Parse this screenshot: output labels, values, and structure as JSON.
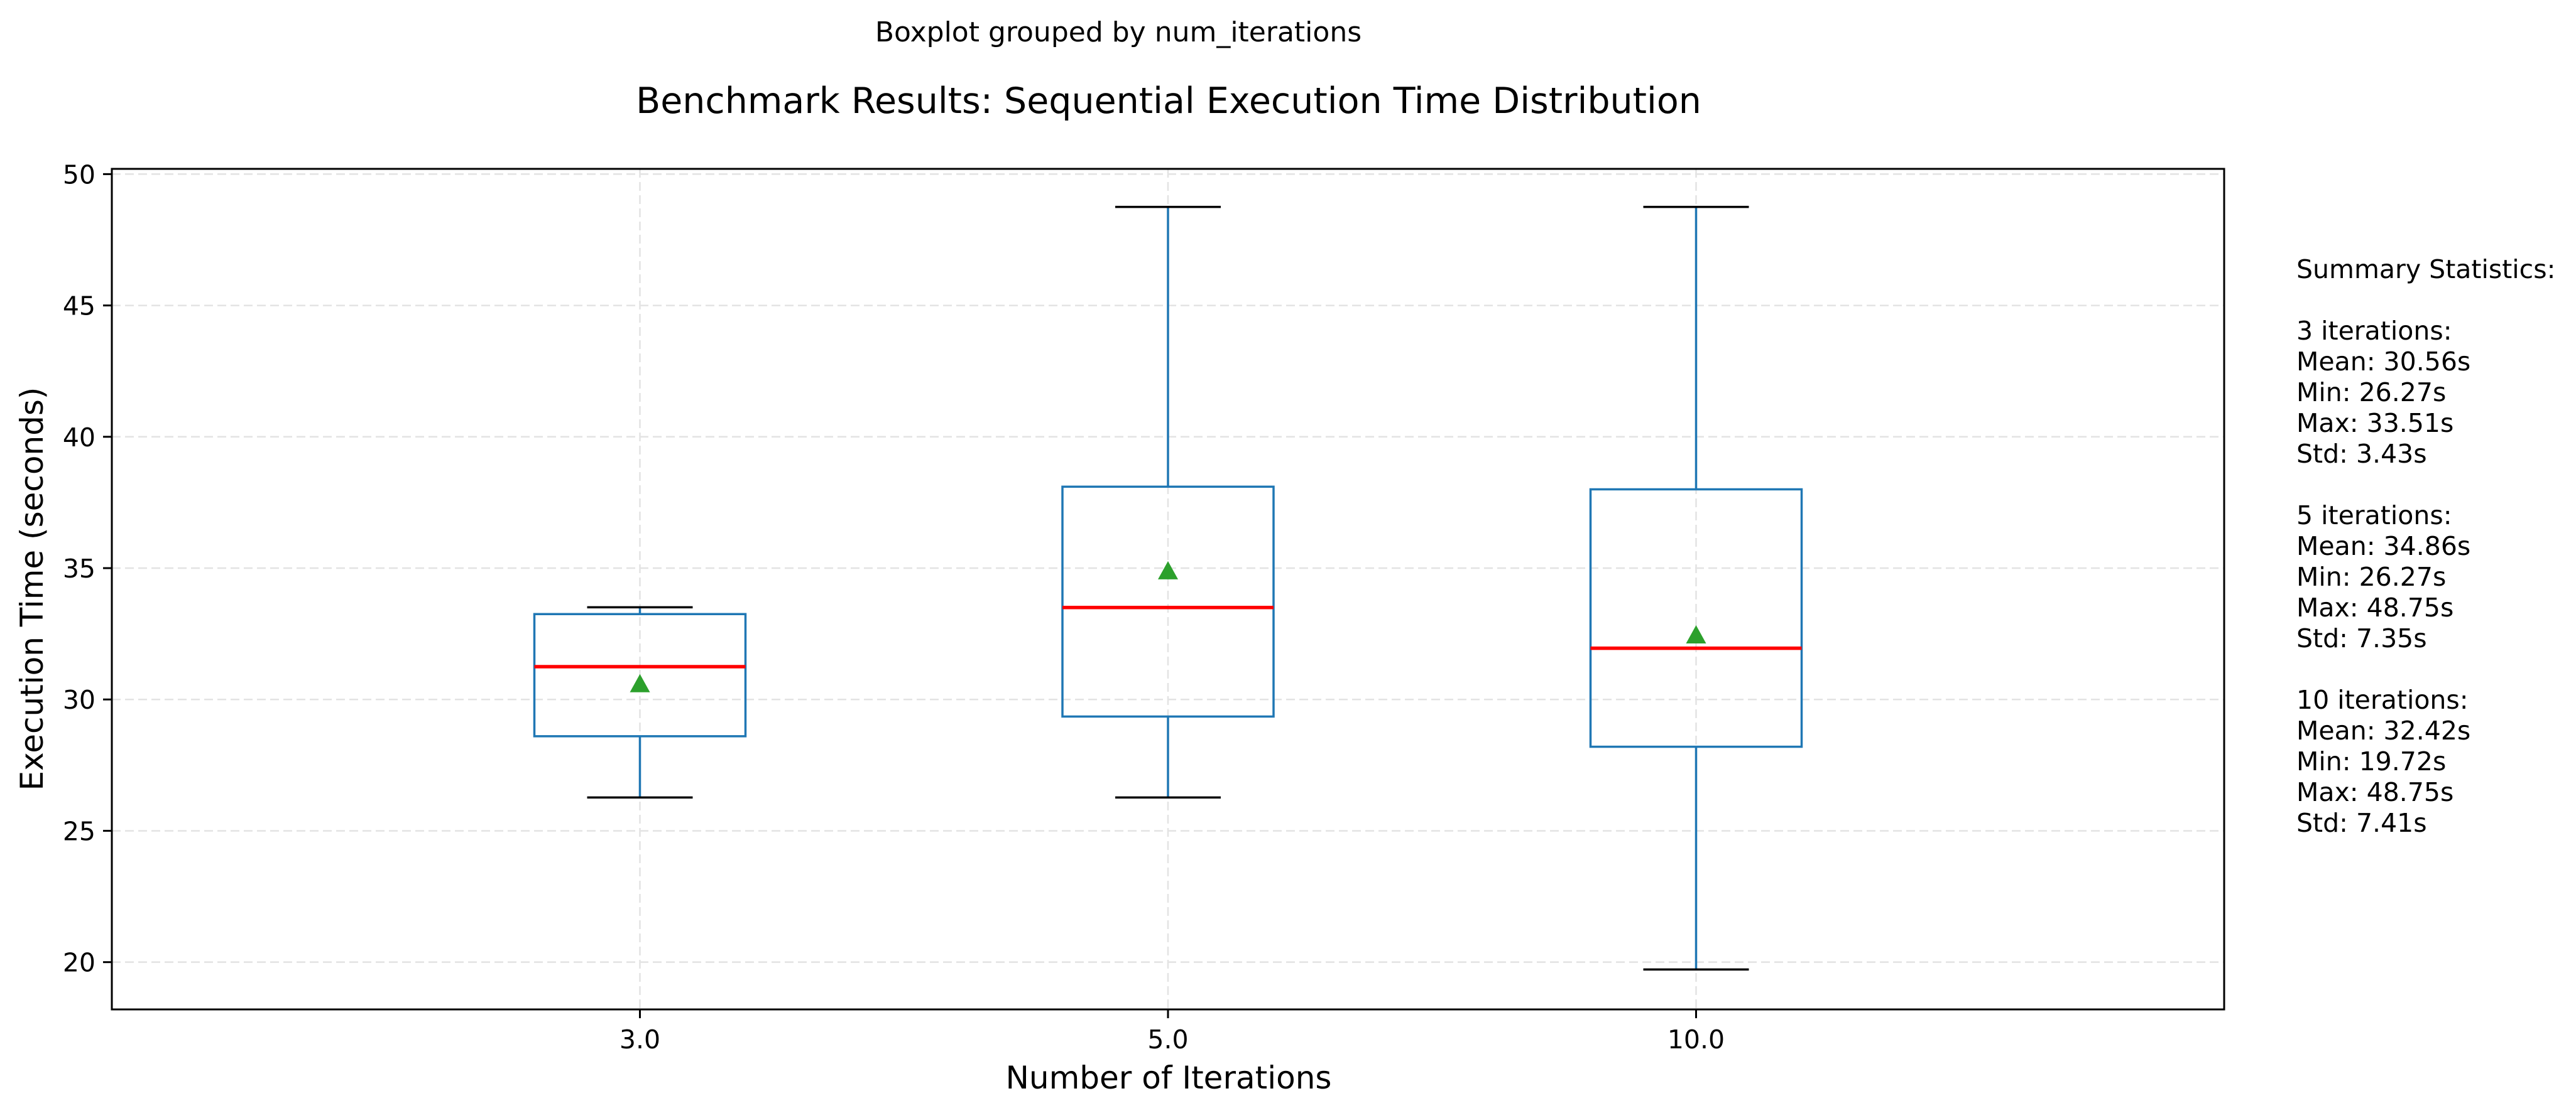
{
  "chart_data": {
    "type": "boxplot",
    "suptitle": "Boxplot grouped by num_iterations",
    "title": "Benchmark Results: Sequential Execution Time Distribution",
    "xlabel": "Number of Iterations",
    "ylabel": "Execution Time (seconds)",
    "ylim": [
      18.2,
      50.2
    ],
    "yticks": [
      20,
      25,
      30,
      35,
      40,
      45,
      50
    ],
    "grid": true,
    "categories": [
      "3.0",
      "5.0",
      "10.0"
    ],
    "boxes": [
      {
        "category": "3.0",
        "whisker_low": 26.27,
        "q1": 28.6,
        "median": 31.25,
        "q3": 33.25,
        "whisker_high": 33.51,
        "mean": 30.56
      },
      {
        "category": "5.0",
        "whisker_low": 26.27,
        "q1": 29.35,
        "median": 33.5,
        "q3": 38.1,
        "whisker_high": 48.75,
        "mean": 34.86
      },
      {
        "category": "10.0",
        "whisker_low": 19.72,
        "q1": 28.2,
        "median": 31.95,
        "q3": 38.0,
        "whisker_high": 48.75,
        "mean": 32.42
      }
    ],
    "colors": {
      "box": "#1f77b4",
      "median": "#ff0000",
      "mean": "#2ca02c",
      "cap": "#000000",
      "grid": "#e3e3e3"
    },
    "summary_lines": [
      "Summary Statistics:",
      "",
      "3 iterations:",
      "Mean: 30.56s",
      "Min: 26.27s",
      "Max: 33.51s",
      "Std: 3.43s",
      "",
      "5 iterations:",
      "Mean: 34.86s",
      "Min: 26.27s",
      "Max: 48.75s",
      "Std: 7.35s",
      "",
      "10 iterations:",
      "Mean: 32.42s",
      "Min: 19.72s",
      "Max: 48.75s",
      "Std: 7.41s"
    ]
  }
}
